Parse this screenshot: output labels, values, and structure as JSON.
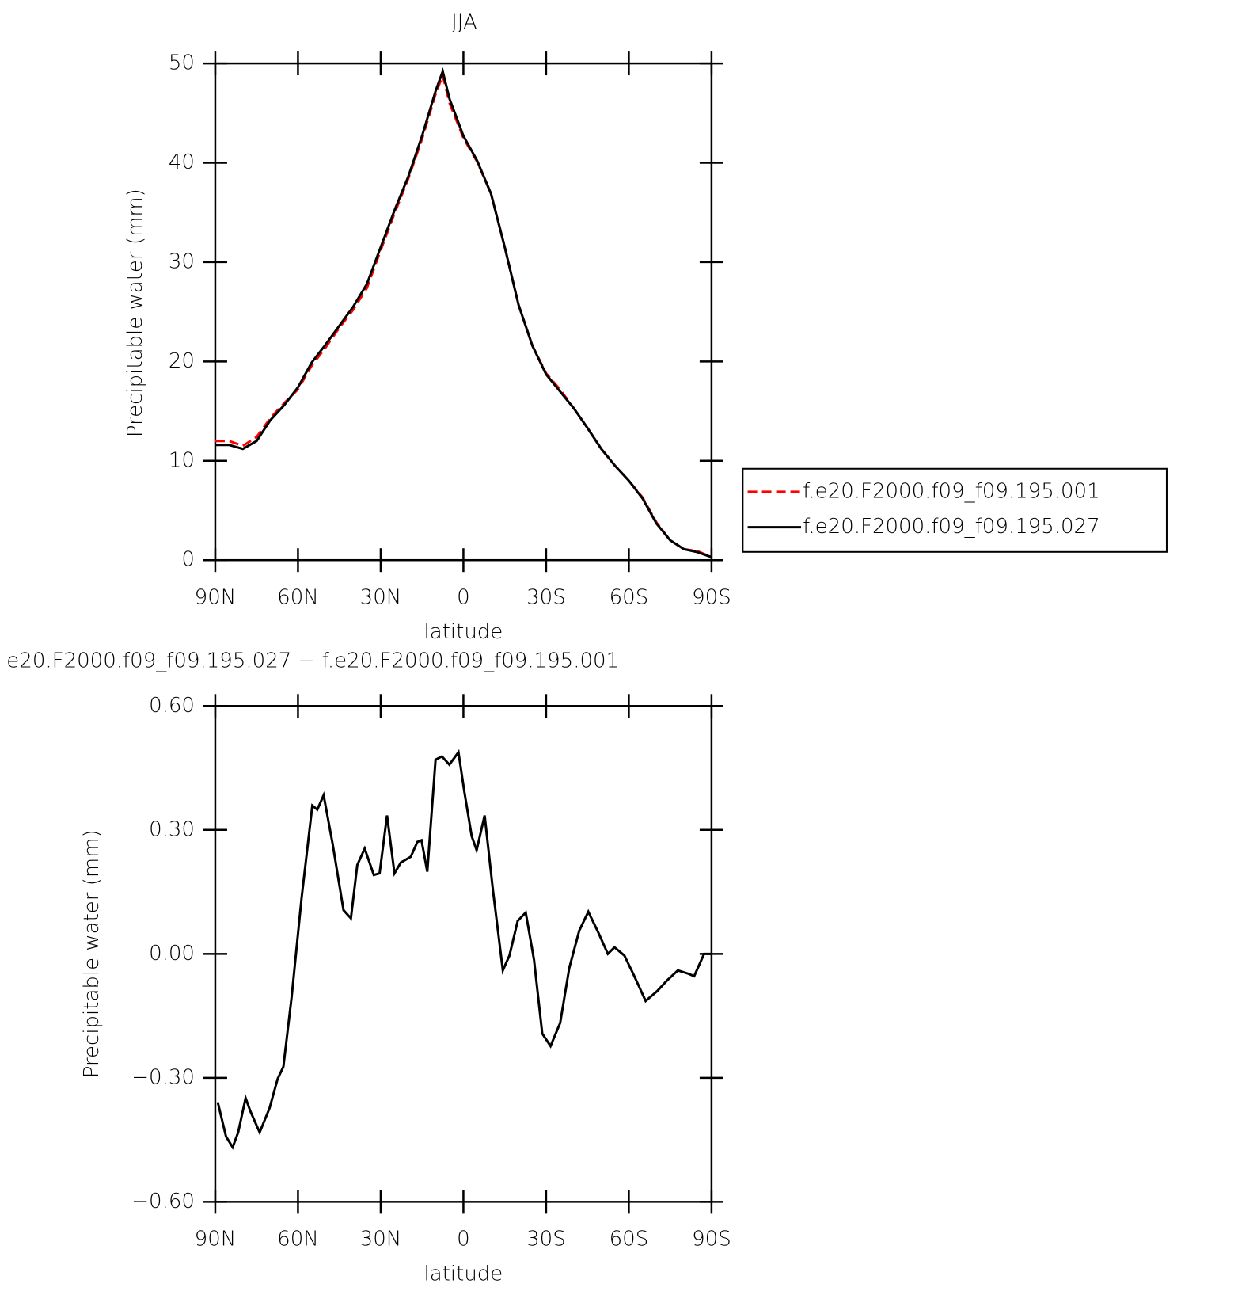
{
  "chart_data": [
    {
      "type": "line",
      "title": "JJA",
      "xlabel": "latitude",
      "ylabel": "Precipitable water (mm)",
      "x": [
        90,
        85,
        80,
        75,
        70,
        65,
        60,
        55,
        50,
        45,
        40,
        35,
        30,
        25,
        20,
        15,
        10,
        7.5,
        5,
        0,
        -5,
        -10,
        -15,
        -20,
        -25,
        -30,
        -35,
        -40,
        -45,
        -50,
        -55,
        -60,
        -65,
        -70,
        -75,
        -80,
        -85,
        -90
      ],
      "series": [
        {
          "name": "f.e20.F2000.f09_f09.195.001",
          "color": "#ff0000",
          "dash": "dashed",
          "values": [
            12.0,
            12.0,
            11.5,
            12.4,
            14.3,
            15.8,
            17.2,
            19.6,
            21.4,
            23.4,
            25.2,
            27.4,
            31.2,
            34.9,
            38.4,
            42.4,
            47.0,
            48.8,
            46.0,
            42.5,
            40.1,
            36.9,
            31.5,
            25.7,
            21.6,
            18.8,
            17.2,
            15.3,
            13.3,
            11.2,
            9.5,
            8.0,
            6.3,
            3.8,
            2.0,
            1.1,
            0.9,
            0.3
          ]
        },
        {
          "name": "f.e20.F2000.f09_f09.195.027",
          "color": "#000000",
          "dash": "solid",
          "values": [
            11.6,
            11.6,
            11.2,
            12.0,
            14.1,
            15.6,
            17.4,
            19.9,
            21.7,
            23.6,
            25.5,
            27.8,
            31.5,
            35.2,
            38.6,
            42.7,
            47.3,
            49.2,
            46.4,
            42.7,
            40.2,
            36.9,
            31.5,
            25.7,
            21.6,
            18.7,
            17.0,
            15.3,
            13.3,
            11.2,
            9.5,
            8.0,
            6.2,
            3.7,
            2.0,
            1.1,
            0.8,
            0.3
          ]
        }
      ],
      "xlim": [
        90,
        -90
      ],
      "xticks": [
        {
          "value": 90,
          "label": "90N"
        },
        {
          "value": 60,
          "label": "60N"
        },
        {
          "value": 30,
          "label": "30N"
        },
        0,
        {
          "value": -30,
          "label": "30S"
        },
        {
          "value": -60,
          "label": "60S"
        },
        {
          "value": -90,
          "label": "90S"
        }
      ],
      "ylim": [
        0,
        50
      ],
      "yticks": [
        0,
        10,
        20,
        30,
        40,
        50
      ],
      "legend": "outside right"
    },
    {
      "type": "line",
      "title": "e20.F2000.f09_f09.195.027 − f.e20.F2000.f09_f09.195.001",
      "xlabel": "latitude",
      "ylabel": "Precipitable water (mm)",
      "x": [
        89.1,
        86.1,
        83.7,
        81.7,
        79,
        77.2,
        73.9,
        70.3,
        67.4,
        65.3,
        62.3,
        58.7,
        54.8,
        53,
        50.7,
        47.4,
        43.5,
        40.8,
        38.5,
        35.8,
        32.5,
        30.4,
        27.7,
        25,
        22.7,
        19.1,
        16.7,
        15.2,
        13.1,
        10.1,
        7.8,
        5.1,
        1.8,
        -0.3,
        -3,
        -4.8,
        -7.7,
        -10.7,
        -14.3,
        -16.7,
        -19.7,
        -22.6,
        -25.6,
        -28.6,
        -31.6,
        -35.1,
        -38.4,
        -42,
        -45.3,
        -48.9,
        -52.4,
        -54.8,
        -58.4,
        -62,
        -66.1,
        -70.3,
        -73.9,
        -77.8,
        -81.6,
        -83.7,
        -87.3,
        -90
      ],
      "color": "#000000",
      "values": [
        -0.359,
        -0.442,
        -0.468,
        -0.432,
        -0.349,
        -0.382,
        -0.432,
        -0.373,
        -0.303,
        -0.273,
        -0.104,
        0.135,
        0.359,
        0.349,
        0.384,
        0.265,
        0.106,
        0.086,
        0.215,
        0.255,
        0.191,
        0.195,
        0.335,
        0.195,
        0.221,
        0.235,
        0.271,
        0.275,
        0.199,
        0.47,
        0.478,
        0.458,
        0.488,
        0.394,
        0.285,
        0.251,
        0.335,
        0.155,
        -0.04,
        -0.004,
        0.08,
        0.1,
        -0.014,
        -0.193,
        -0.223,
        -0.167,
        -0.034,
        0.056,
        0.102,
        0.052,
        0,
        0.016,
        -0.004,
        -0.054,
        -0.114,
        -0.09,
        -0.064,
        -0.04,
        -0.048,
        -0.054,
        0,
        0
      ],
      "xlim": [
        90,
        -90
      ],
      "xticks": [
        {
          "value": 90,
          "label": "90N"
        },
        {
          "value": 60,
          "label": "60N"
        },
        {
          "value": 30,
          "label": "30N"
        },
        0,
        {
          "value": -30,
          "label": "30S"
        },
        {
          "value": -60,
          "label": "60S"
        },
        {
          "value": -90,
          "label": "90S"
        }
      ],
      "ylim": [
        -0.6,
        0.6
      ],
      "yticks": [
        {
          "value": -0.6,
          "label": "−0.60"
        },
        {
          "value": -0.3,
          "label": "−0.30"
        },
        {
          "value": 0,
          "label": "0.00"
        },
        {
          "value": 0.3,
          "label": "0.30"
        },
        {
          "value": 0.6,
          "label": "0.60"
        }
      ]
    }
  ]
}
